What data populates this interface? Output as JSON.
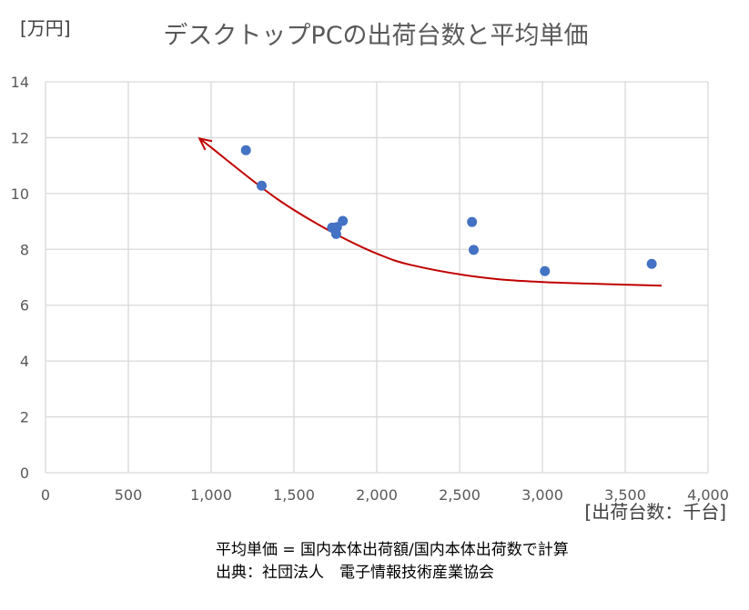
{
  "chart_data": {
    "type": "scatter",
    "title": "デスクトップPCの出荷台数と平均単価",
    "ylabel": "[万円]",
    "xlabel": "[出荷台数：千台]",
    "xlim": [
      0,
      4000
    ],
    "ylim": [
      0,
      14
    ],
    "xticks": [
      "0",
      "500",
      "1,000",
      "1,500",
      "2,000",
      "2,500",
      "3,000",
      "3,500",
      "4,000"
    ],
    "yticks": [
      "0",
      "2",
      "4",
      "6",
      "8",
      "10",
      "12",
      "14"
    ],
    "grid": true,
    "points": [
      {
        "x": 1210,
        "y": 11.55
      },
      {
        "x": 1305,
        "y": 10.28
      },
      {
        "x": 1730,
        "y": 8.78
      },
      {
        "x": 1755,
        "y": 8.55
      },
      {
        "x": 1760,
        "y": 8.8
      },
      {
        "x": 1795,
        "y": 9.02
      },
      {
        "x": 2575,
        "y": 8.98
      },
      {
        "x": 2585,
        "y": 7.98
      },
      {
        "x": 3015,
        "y": 7.22
      },
      {
        "x": 3660,
        "y": 7.48
      }
    ],
    "trendline": {
      "type": "exponential",
      "points": [
        [
          3720,
          6.7
        ],
        [
          3000,
          6.83
        ],
        [
          2600,
          7.02
        ],
        [
          2200,
          7.45
        ],
        [
          2000,
          7.85
        ],
        [
          1800,
          8.4
        ],
        [
          1600,
          9.05
        ],
        [
          1400,
          9.8
        ],
        [
          1200,
          10.7
        ],
        [
          1000,
          11.65
        ],
        [
          930,
          11.97
        ]
      ]
    },
    "marker_color": "#4472C4",
    "trend_color": "#C00000",
    "notes": [
      "平均単価 = 国内本体出荷額/国内本体出荷数で計算",
      "出典：社団法人　電子情報技術産業協会"
    ]
  }
}
